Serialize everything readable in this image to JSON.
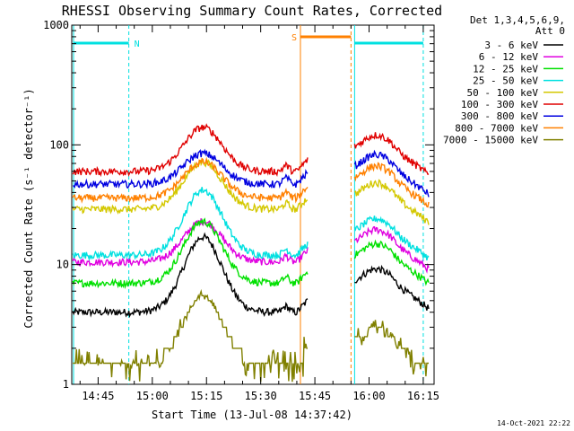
{
  "chart_data": {
    "type": "line",
    "title": "RHESSI Observing Summary Count Rates, Corrected",
    "xlabel": "Start Time (13-Jul-08 14:37:42)",
    "ylabel": "Corrected Count Rate (s⁻¹ detector⁻¹)",
    "yscale": "log",
    "ylim": [
      1,
      1000
    ],
    "xlim": [
      "14:37:42",
      "16:18"
    ],
    "y_ticks": [
      "1",
      "10",
      "100",
      "1000"
    ],
    "x_ticks": [
      "14:45",
      "15:00",
      "15:15",
      "15:30",
      "15:45",
      "16:00",
      "16:15"
    ],
    "legend_title": [
      "Det 1,3,4,5,6,9,",
      "Att 0"
    ],
    "legend_position": "right",
    "series": [
      {
        "name": "3 - 6 keV",
        "color": "#000000",
        "base": 4.0,
        "peak": 17,
        "post": 8
      },
      {
        "name": "6 - 12 keV",
        "color": "#e000e0",
        "base": 10.5,
        "peak": 23,
        "post": 17
      },
      {
        "name": "12 - 25 keV",
        "color": "#00e000",
        "base": 7.0,
        "peak": 23,
        "post": 13
      },
      {
        "name": "25 - 50 keV",
        "color": "#00e0e0",
        "base": 12.0,
        "peak": 42,
        "post": 21
      },
      {
        "name": "50 - 100 keV",
        "color": "#d4c800",
        "base": 29,
        "peak": 72,
        "post": 42
      },
      {
        "name": "100 - 300 keV",
        "color": "#e00000",
        "base": 60,
        "peak": 140,
        "post": 105
      },
      {
        "name": "300 - 800 keV",
        "color": "#0000e0",
        "base": 47,
        "peak": 85,
        "post": 72
      },
      {
        "name": "800 - 7000 keV",
        "color": "#ff8000",
        "base": 36,
        "peak": 72,
        "post": 58
      },
      {
        "name": "7000 - 15000 keV",
        "color": "#808000",
        "base": 1.5,
        "peak": 5.5,
        "post": 2.5
      }
    ],
    "flags": [
      {
        "label": "N",
        "color": "#00e0e0",
        "start": "14:37:42",
        "end": "14:53:30"
      },
      {
        "label": "S",
        "color": "#ff8000",
        "start": "15:41",
        "end": "15:55"
      },
      {
        "label": "",
        "color": "#00e0e0",
        "start": "15:56",
        "end": "16:15"
      }
    ],
    "gap": [
      "15:43",
      "15:56"
    ]
  },
  "footer": {
    "timestamp": "14-Oct-2021 22:22"
  }
}
